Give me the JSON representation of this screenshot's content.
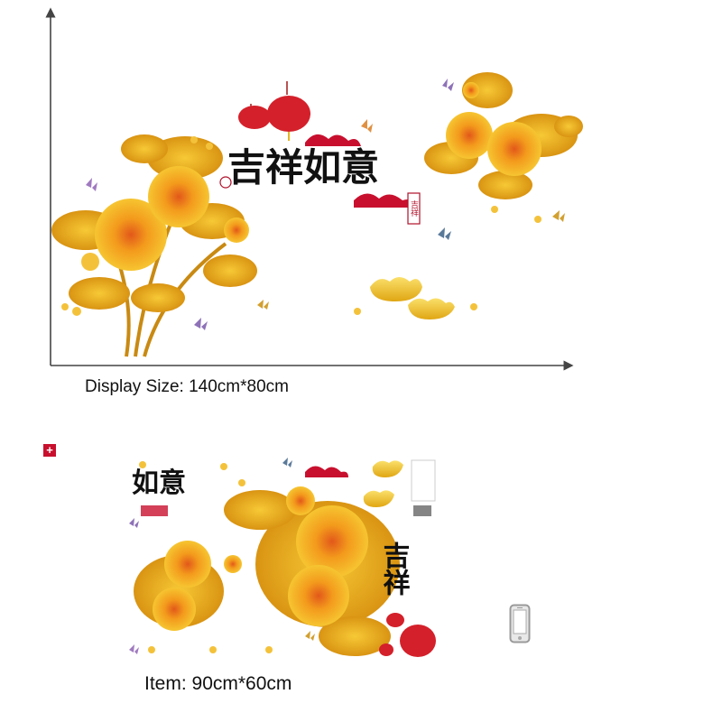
{
  "display_caption": "Display Size: 140cm*80cm",
  "item_caption": "Item: 90cm*60cm",
  "main_calligraphy": "吉祥如意",
  "seal_text": "吉祥",
  "sheet_calligraphy_left": "如意",
  "sheet_calligraphy_right": "吉祥",
  "icons": {
    "phone": "smartphone-icon",
    "badge": "red-plus-badge-icon"
  },
  "colors": {
    "flower_gold": "#f2b51a",
    "flower_center": "#e8731a",
    "lantern_red": "#d4202a",
    "cloud_red": "#c8102e",
    "axis": "#444444"
  }
}
